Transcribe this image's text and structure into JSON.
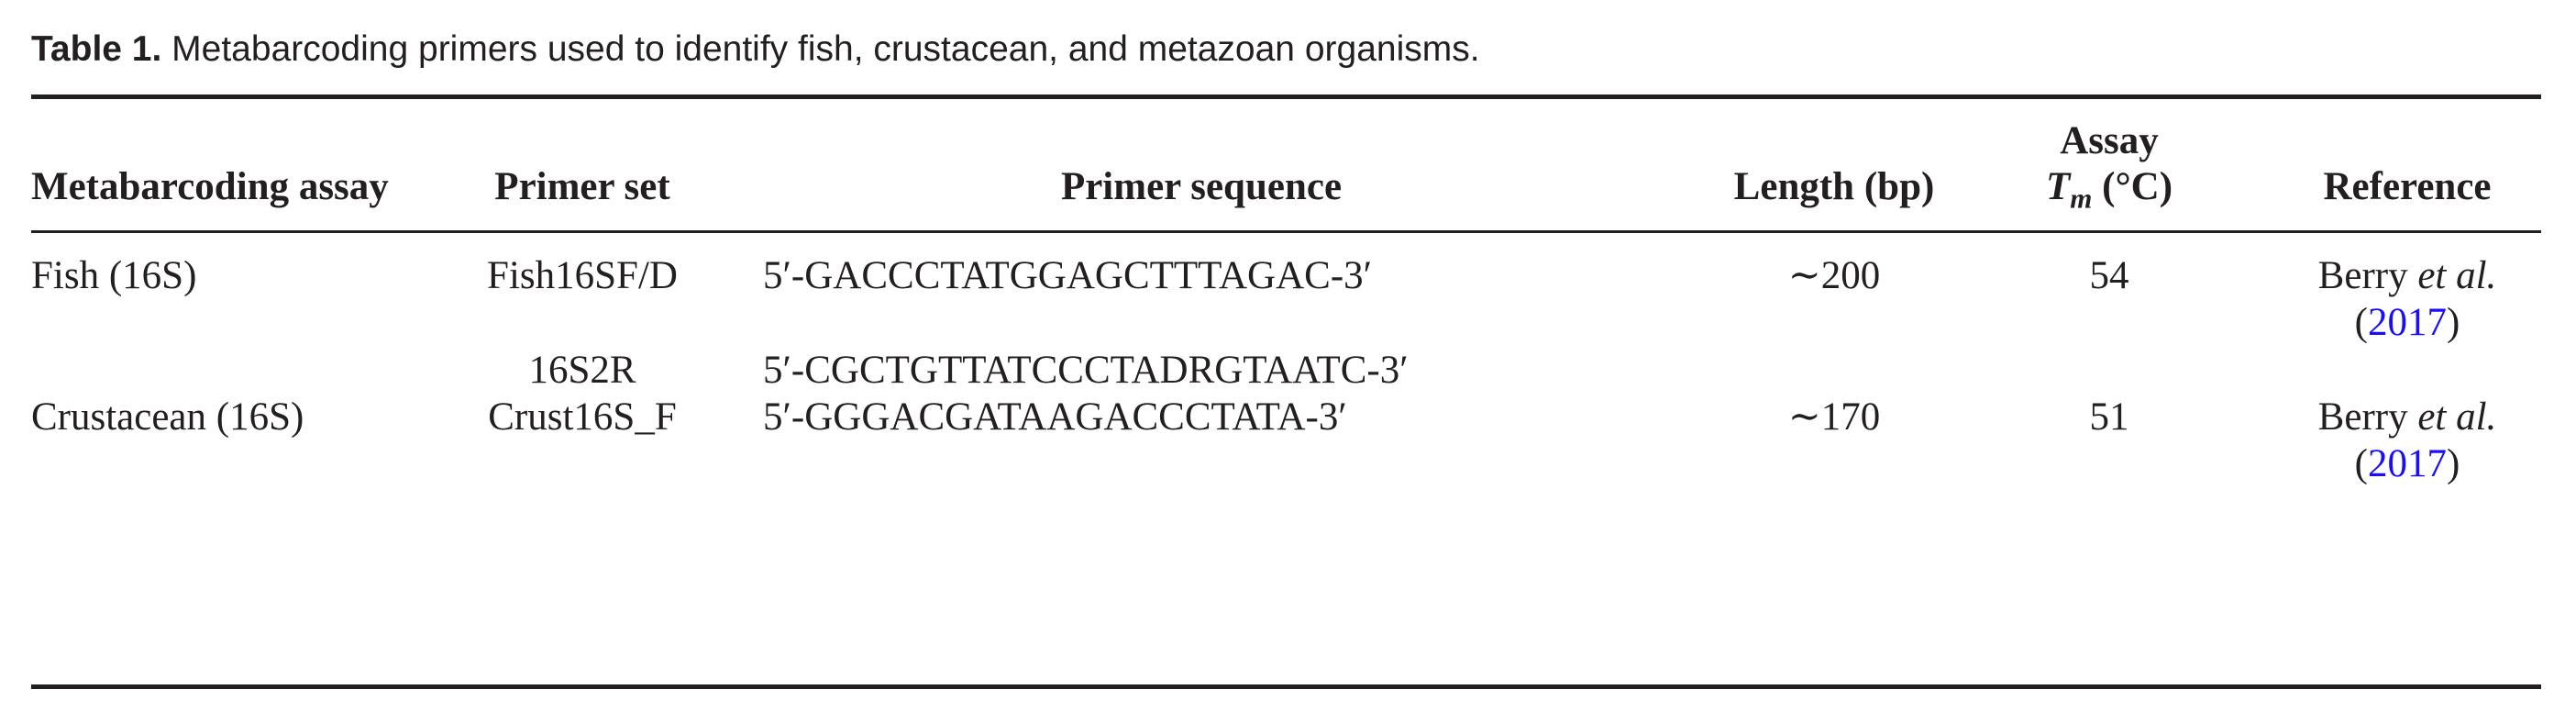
{
  "caption": {
    "label": "Table 1.",
    "text": "Metabarcoding primers used to identify fish, crustacean, and metazoan organisms."
  },
  "headers": {
    "assay": "Metabarcoding assay",
    "primer_set": "Primer set",
    "primer_sequence": "Primer sequence",
    "length": "Length (bp)",
    "tm_line1": "Assay",
    "tm_symbol": "T",
    "tm_subscript": "m",
    "tm_unit": " (°C)",
    "reference": "Reference"
  },
  "rows": [
    {
      "assay": "Fish (16S)",
      "primer_set": "Fish16SF/D",
      "primer_sequence": "5′-GACCCTATGGAGCTTTAGAC-3′",
      "length": "∼200",
      "tm": "54",
      "ref_author": "Berry ",
      "ref_etal": "et al.",
      "ref_open": "(",
      "ref_year": "2017",
      "ref_close": ")"
    },
    {
      "assay": "",
      "primer_set": "16S2R",
      "primer_sequence": "5′-CGCTGTTATCCCTADRGTAATC-3′",
      "length": "",
      "tm": "",
      "ref_author": "",
      "ref_etal": "",
      "ref_open": "",
      "ref_year": "",
      "ref_close": ""
    },
    {
      "assay": "Crustacean (16S)",
      "primer_set": "Crust16S_F",
      "primer_sequence": "5′-GGGACGATAAGACCCTATA-3′",
      "length": "∼170",
      "tm": "51",
      "ref_author": "Berry ",
      "ref_etal": "et al.",
      "ref_open": "(",
      "ref_year": "2017",
      "ref_close": ")"
    }
  ],
  "colors": {
    "text": "#231f20",
    "link": "#1a0dff"
  }
}
